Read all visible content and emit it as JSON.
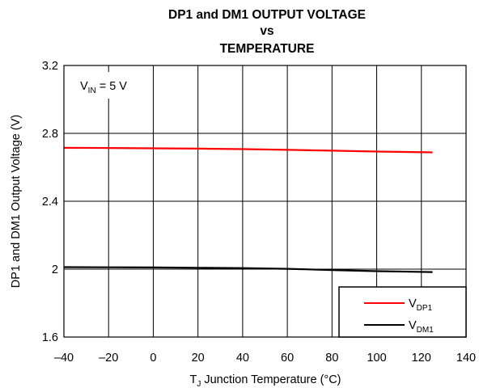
{
  "chart_data": {
    "type": "line",
    "title_lines": [
      "DP1 and DM1 OUTPUT VOLTAGE",
      "vs",
      "TEMPERATURE"
    ],
    "xlabel": {
      "prefix": "T",
      "sub": "J",
      "suffix": " Junction Temperature (°C)"
    },
    "ylabel": "DP1 and DM1 Output Voltage (V)",
    "xlim": [
      -40,
      140
    ],
    "ylim": [
      1.6,
      3.2
    ],
    "xticks": [
      -40,
      -20,
      0,
      20,
      40,
      60,
      80,
      100,
      120,
      140
    ],
    "xtick_labels": [
      "–40",
      "–20",
      "0",
      "20",
      "40",
      "60",
      "80",
      "100",
      "120",
      "140"
    ],
    "yticks": [
      1.6,
      2,
      2.4,
      2.8,
      3.2
    ],
    "ytick_labels": [
      "1.6",
      "2",
      "2.4",
      "2.8",
      "3.2"
    ],
    "grid": true,
    "annotation": {
      "prefix": "V",
      "sub": "IN",
      "suffix": " = 5 V"
    },
    "legend_position": "bottom-right",
    "series": [
      {
        "name_prefix": "V",
        "name_sub": "DP1",
        "color": "#ff0000",
        "x": [
          -40,
          -20,
          0,
          20,
          40,
          60,
          80,
          100,
          125
        ],
        "y": [
          2.715,
          2.714,
          2.712,
          2.71,
          2.707,
          2.703,
          2.698,
          2.693,
          2.688
        ]
      },
      {
        "name_prefix": "V",
        "name_sub": "DM1",
        "color": "#000000",
        "x": [
          -40,
          -20,
          0,
          20,
          40,
          60,
          80,
          100,
          125
        ],
        "y": [
          2.012,
          2.011,
          2.01,
          2.008,
          2.006,
          2.002,
          1.995,
          1.988,
          1.983
        ]
      }
    ]
  }
}
